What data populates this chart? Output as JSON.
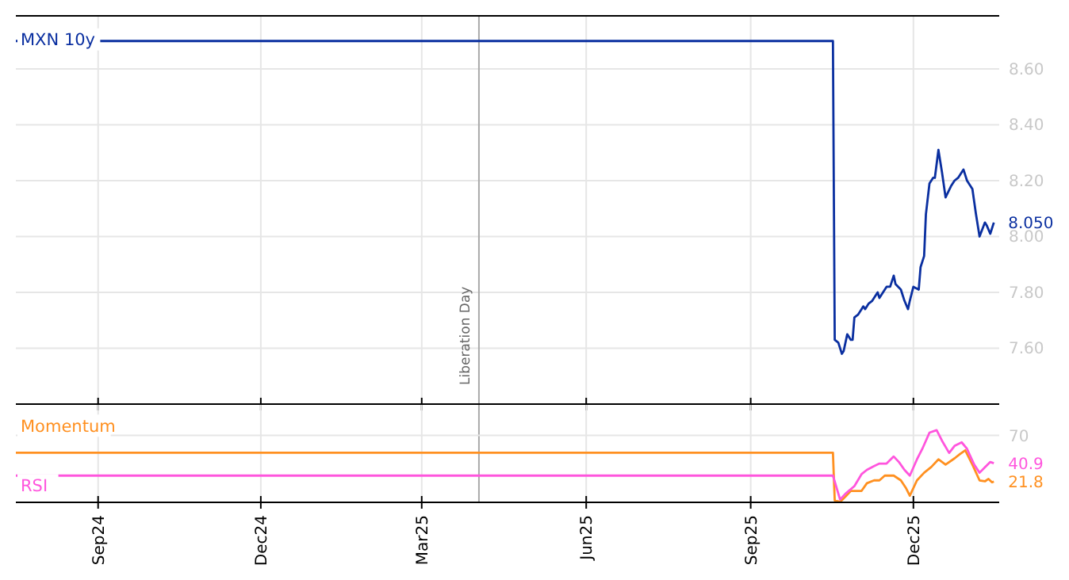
{
  "chart_data": [
    {
      "type": "line",
      "grid": true,
      "tick_labels": "y",
      "xlim": [
        "2024-07-17",
        "2026-01-18"
      ],
      "xticks": [
        {
          "value": "2024-09-01",
          "label": null
        },
        {
          "value": "2024-12-01",
          "label": null
        },
        {
          "value": "2025-03-01",
          "label": null
        },
        {
          "value": "2025-06-01",
          "label": null
        },
        {
          "value": "2025-09-01",
          "label": null
        },
        {
          "value": "2025-12-01",
          "label": null
        }
      ],
      "ylim": [
        7.4,
        8.79
      ],
      "yticks": [
        {
          "value": 7.6,
          "label": "7.60"
        },
        {
          "value": 7.8,
          "label": "7.80"
        },
        {
          "value": 8.0,
          "label": "8.00"
        },
        {
          "value": 8.2,
          "label": "8.20"
        },
        {
          "value": 8.4,
          "label": "8.40"
        },
        {
          "value": 8.6,
          "label": "8.60"
        }
      ],
      "ref_lines": [
        {
          "axis": "x",
          "value": "2025-04-02",
          "label": "Liberation Day",
          "color": "#aaaaaa"
        }
      ],
      "annotations": [
        {
          "text": "8.050",
          "x": "2026-01-15",
          "y": 8.05
        }
      ],
      "series": [
        {
          "name": "MXN 10y",
          "color": "#0a2fa0",
          "x": [
            "2024-07-17",
            "2025-10-17",
            "2025-10-18",
            "2025-10-20",
            "2025-10-22",
            "2025-10-23",
            "2025-10-25",
            "2025-10-27",
            "2025-10-28",
            "2025-10-29",
            "2025-10-31",
            "2025-11-02",
            "2025-11-03",
            "2025-11-04",
            "2025-11-06",
            "2025-11-08",
            "2025-11-09",
            "2025-11-11",
            "2025-11-12",
            "2025-11-14",
            "2025-11-16",
            "2025-11-18",
            "2025-11-20",
            "2025-11-21",
            "2025-11-24",
            "2025-11-26",
            "2025-11-28",
            "2025-11-29",
            "2025-12-01",
            "2025-12-04",
            "2025-12-05",
            "2025-12-07",
            "2025-12-08",
            "2025-12-10",
            "2025-12-12",
            "2025-12-13",
            "2025-12-15",
            "2025-12-17",
            "2025-12-19",
            "2025-12-22",
            "2025-12-24",
            "2025-12-26",
            "2025-12-27",
            "2025-12-29",
            "2025-12-31",
            "2026-01-02",
            "2026-01-03",
            "2026-01-05",
            "2026-01-07",
            "2026-01-10",
            "2026-01-11",
            "2026-01-13",
            "2026-01-15"
          ],
          "values": [
            8.7,
            8.7,
            7.63,
            7.62,
            7.58,
            7.59,
            7.65,
            7.63,
            7.63,
            7.71,
            7.72,
            7.74,
            7.75,
            7.74,
            7.76,
            7.77,
            7.78,
            7.8,
            7.78,
            7.8,
            7.82,
            7.82,
            7.86,
            7.83,
            7.81,
            7.77,
            7.74,
            7.77,
            7.82,
            7.81,
            7.89,
            7.93,
            8.08,
            8.19,
            8.21,
            8.21,
            8.31,
            8.23,
            8.14,
            8.18,
            8.2,
            8.21,
            8.22,
            8.24,
            8.2,
            8.18,
            8.17,
            8.08,
            8.0,
            8.05,
            8.04,
            8.01,
            8.05
          ]
        }
      ]
    },
    {
      "type": "line",
      "grid": "x",
      "xlim": [
        "2024-07-17",
        "2026-01-18"
      ],
      "xticks": [
        {
          "value": "2024-09-01",
          "label": "Sep24"
        },
        {
          "value": "2024-12-01",
          "label": "Dec24"
        },
        {
          "value": "2025-03-01",
          "label": "Mar25"
        },
        {
          "value": "2025-06-01",
          "label": "Jun25"
        },
        {
          "value": "2025-09-01",
          "label": "Sep25"
        },
        {
          "value": "2025-12-01",
          "label": "Dec25"
        }
      ],
      "ref_lines": [
        {
          "axis": "x",
          "value": "2025-04-02",
          "color": "#aaaaaa"
        },
        {
          "axis": "y",
          "value": 70,
          "label": "70",
          "color": "#e6e6e6"
        }
      ],
      "series": [
        {
          "name": "Momentum",
          "color": "#ff9020",
          "x": [
            "2024-07-17",
            "2025-10-17",
            "2025-10-18",
            "2025-10-21",
            "2025-10-24",
            "2025-10-27",
            "2025-11-02",
            "2025-11-05",
            "2025-11-09",
            "2025-11-12",
            "2025-11-15",
            "2025-11-20",
            "2025-11-24",
            "2025-11-27",
            "2025-11-29",
            "2025-12-03",
            "2025-12-07",
            "2025-12-11",
            "2025-12-15",
            "2025-12-19",
            "2025-12-24",
            "2025-12-27",
            "2025-12-30",
            "2026-01-03",
            "2026-01-07",
            "2026-01-10",
            "2026-01-12",
            "2026-01-14",
            "2026-01-15"
          ],
          "values": [
            52,
            52,
            2,
            0.5,
            6,
            12,
            12,
            20,
            23,
            23,
            28,
            28,
            23,
            14.5,
            7,
            23,
            31,
            37,
            45,
            39.5,
            46,
            50.5,
            54.5,
            39.5,
            23,
            22,
            24.5,
            21,
            21.8
          ],
          "value_labels": [
            null,
            null,
            null,
            null,
            null,
            null,
            null,
            null,
            null,
            null,
            null,
            null,
            null,
            null,
            null,
            null,
            null,
            null,
            null,
            null,
            null,
            null,
            null,
            null,
            null,
            null,
            null,
            null,
            "21.8"
          ]
        },
        {
          "name": "RSI",
          "color": "#ff55dd",
          "x": [
            "2024-07-17",
            "2025-10-17",
            "2025-10-21",
            "2025-10-24",
            "2025-10-29",
            "2025-11-02",
            "2025-11-05",
            "2025-11-09",
            "2025-11-12",
            "2025-11-16",
            "2025-11-20",
            "2025-11-23",
            "2025-11-26",
            "2025-11-29",
            "2025-12-03",
            "2025-12-06",
            "2025-12-10",
            "2025-12-14",
            "2025-12-17",
            "2025-12-21",
            "2025-12-24",
            "2025-12-28",
            "2025-12-31",
            "2026-01-04",
            "2026-01-07",
            "2026-01-10",
            "2026-01-13",
            "2026-01-15"
          ],
          "values": [
            28,
            28,
            3,
            9,
            17,
            29.5,
            34,
            38,
            40.6,
            40.6,
            48,
            42,
            34,
            28,
            45,
            56,
            73,
            75.6,
            64.5,
            51.7,
            59,
            62.8,
            56,
            39.5,
            31,
            36.7,
            42.2,
            40.9
          ],
          "value_labels": [
            null,
            null,
            null,
            null,
            null,
            null,
            null,
            null,
            null,
            null,
            null,
            null,
            null,
            null,
            null,
            null,
            null,
            null,
            null,
            null,
            null,
            null,
            null,
            null,
            null,
            null,
            null,
            "40.9"
          ]
        }
      ]
    }
  ]
}
